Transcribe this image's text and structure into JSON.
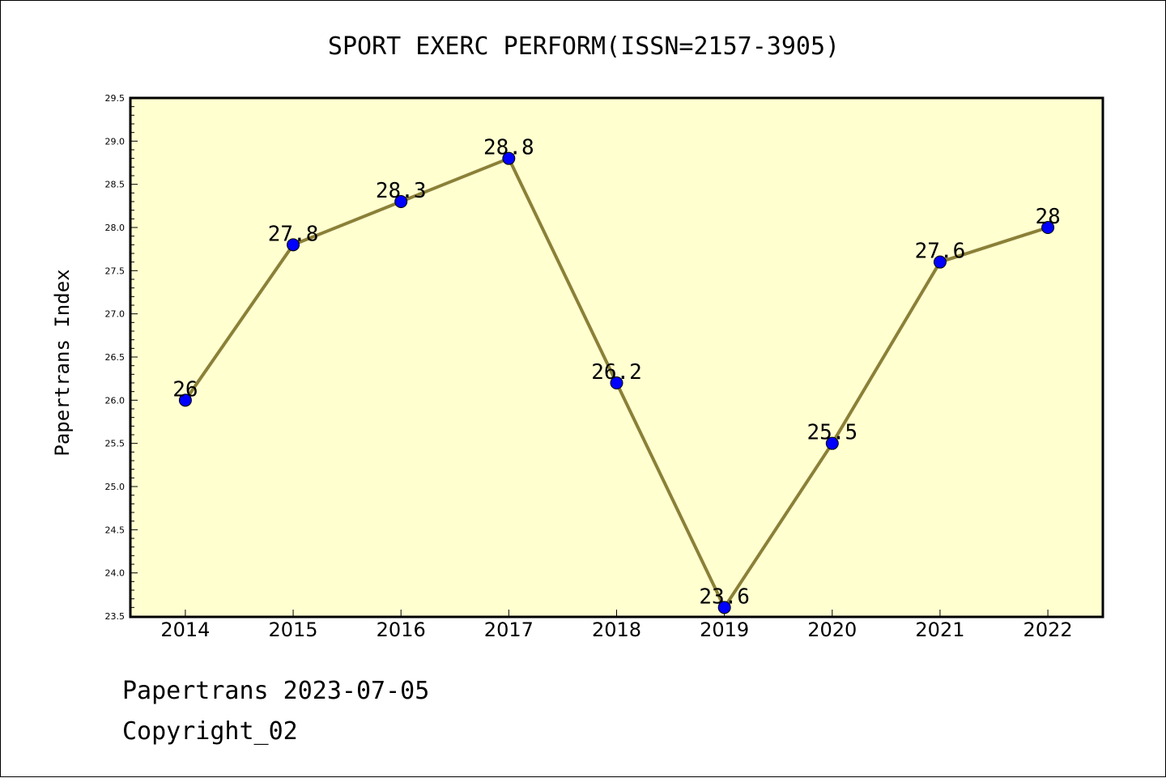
{
  "chart_data": {
    "type": "line",
    "title": "SPORT EXERC PERFORM(ISSN=2157-3905)",
    "xlabel": "",
    "ylabel": "Papertrans Index",
    "categories": [
      "2014",
      "2015",
      "2016",
      "2017",
      "2018",
      "2019",
      "2020",
      "2021",
      "2022"
    ],
    "series": [
      {
        "values": [
          26.0,
          27.8,
          28.3,
          28.8,
          26.2,
          23.6,
          25.5,
          27.6,
          28.0
        ]
      }
    ],
    "data_labels": [
      "26",
      "27.8",
      "28.3",
      "28.8",
      "26.2",
      "23.6",
      "25.5",
      "27.6",
      "28"
    ],
    "ylim": [
      23.5,
      29.5
    ],
    "y_ticks": [
      "23.5",
      "24.0",
      "24.5",
      "25.0",
      "25.5",
      "26.0",
      "26.5",
      "27.0",
      "27.5",
      "28.0",
      "28.5",
      "29.0",
      "29.5"
    ],
    "grid": false,
    "legend": "none",
    "colors": {
      "plot_background": "#ffffd0",
      "line": "#8b8038",
      "marker": "#0000ff"
    }
  },
  "footer": {
    "source": "Papertrans 2023-07-05",
    "copyright": "Copyright_02"
  }
}
